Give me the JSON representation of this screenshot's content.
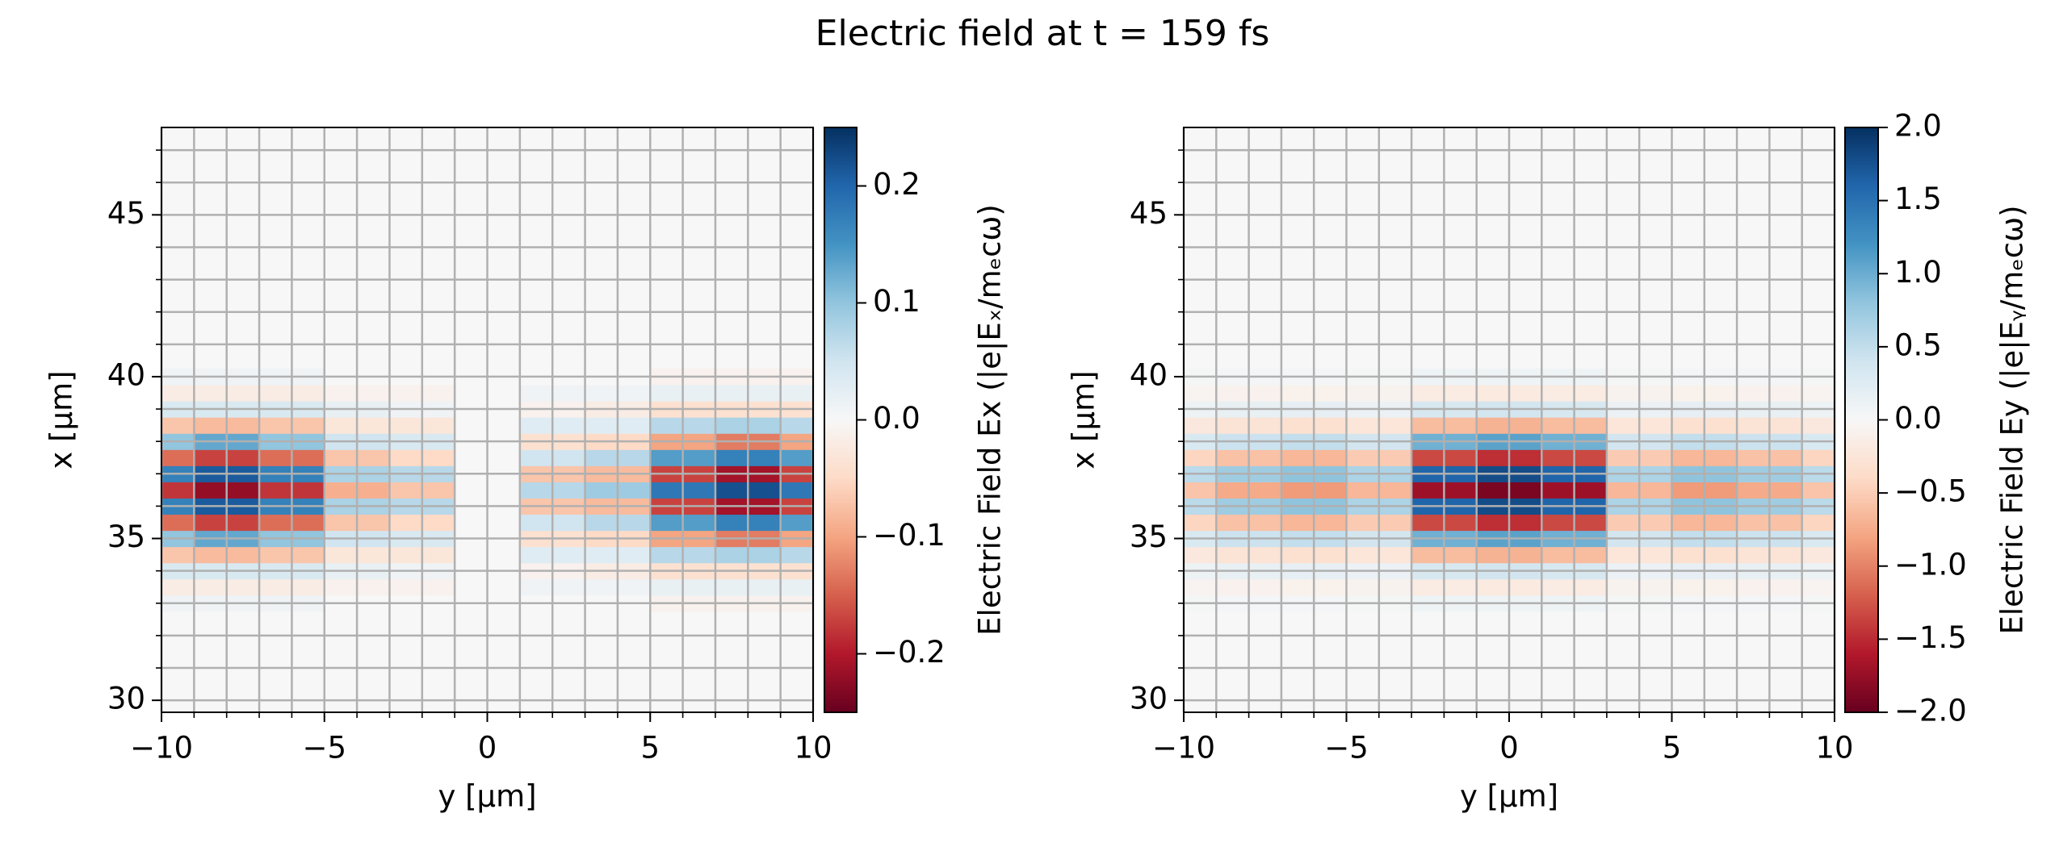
{
  "title": "Electric field at t = 159 fs",
  "chart_data": [
    {
      "type": "heatmap",
      "xlabel": "y [µm]",
      "ylabel": "x [µm]",
      "xlim": [
        -10,
        10
      ],
      "ylim": [
        29.63,
        47.7
      ],
      "xticks": [
        {
          "value": -10,
          "label": "−10"
        },
        {
          "value": -5,
          "label": "−5"
        },
        0,
        5,
        10
      ],
      "yticks": [
        30,
        35,
        40,
        45
      ],
      "xminorticks": [
        -10,
        -9,
        -8,
        -7,
        -6,
        -5,
        -4,
        -3,
        -2,
        -1,
        0,
        1,
        2,
        3,
        4,
        5,
        6,
        7,
        8,
        9,
        10
      ],
      "yminorticks": [
        30,
        31,
        32,
        33,
        34,
        35,
        36,
        37,
        38,
        39,
        40,
        41,
        42,
        43,
        44,
        45,
        46,
        47
      ],
      "grid": true,
      "colormap": [
        "#67001f",
        "#b2182b",
        "#d6604d",
        "#f4a582",
        "#fddbc7",
        "#f7f7f7",
        "#d1e5f0",
        "#92c5de",
        "#4393c3",
        "#2166ac",
        "#053061"
      ],
      "colorbar": {
        "label": "Electric Field Ex (|e|Eₓ/mₑcω)",
        "lim": [
          -0.25,
          0.25
        ],
        "ticks": [
          {
            "value": -0.2,
            "label": "−0.2"
          },
          {
            "value": -0.1,
            "label": "−0.1"
          },
          {
            "value": 0,
            "label": "0.0"
          },
          0.1,
          0.2
        ]
      },
      "x": [
        -10,
        -8,
        -6,
        -4,
        -2,
        0,
        2,
        4,
        6,
        8,
        10
      ],
      "y": [
        33,
        33.5,
        34,
        34.5,
        35,
        35.5,
        36,
        36.5,
        37,
        37.5,
        38,
        38.5,
        39,
        39.5,
        40
      ],
      "values": [
        [
          0.01,
          0.01,
          0.01,
          0,
          0,
          0,
          0,
          0,
          -0.01,
          -0.01,
          -0.01
        ],
        [
          -0.02,
          -0.02,
          -0.02,
          -0.01,
          -0.01,
          0,
          0.01,
          0.01,
          0.02,
          0.02,
          0.02
        ],
        [
          0.04,
          0.04,
          0.04,
          0.02,
          0.01,
          0,
          -0.01,
          -0.02,
          -0.04,
          -0.04,
          -0.04
        ],
        [
          -0.07,
          -0.08,
          -0.07,
          -0.03,
          -0.03,
          0,
          0.03,
          0.03,
          0.07,
          0.08,
          0.07
        ],
        [
          0.1,
          0.13,
          0.1,
          0.05,
          0.04,
          0,
          -0.04,
          -0.05,
          -0.1,
          -0.13,
          -0.1
        ],
        [
          -0.14,
          -0.17,
          -0.14,
          -0.07,
          -0.05,
          0,
          0.05,
          0.07,
          0.14,
          0.17,
          0.14
        ],
        [
          0.17,
          0.21,
          0.17,
          0.08,
          0.07,
          0,
          -0.07,
          -0.08,
          -0.17,
          -0.21,
          -0.17
        ],
        [
          -0.18,
          -0.22,
          -0.18,
          -0.09,
          -0.07,
          0,
          0.07,
          0.09,
          0.18,
          0.22,
          0.18
        ],
        [
          0.17,
          0.21,
          0.17,
          0.08,
          0.07,
          0,
          -0.07,
          -0.08,
          -0.17,
          -0.21,
          -0.17
        ],
        [
          -0.14,
          -0.17,
          -0.14,
          -0.07,
          -0.05,
          0,
          0.05,
          0.07,
          0.14,
          0.17,
          0.14
        ],
        [
          0.1,
          0.13,
          0.1,
          0.05,
          0.04,
          0,
          -0.04,
          -0.05,
          -0.1,
          -0.13,
          -0.1
        ],
        [
          -0.07,
          -0.08,
          -0.07,
          -0.03,
          -0.03,
          0,
          0.03,
          0.03,
          0.07,
          0.08,
          0.07
        ],
        [
          0.04,
          0.04,
          0.04,
          0.02,
          0.01,
          0,
          -0.01,
          -0.02,
          -0.04,
          -0.04,
          -0.04
        ],
        [
          -0.02,
          -0.02,
          -0.02,
          -0.01,
          -0.01,
          0,
          0.01,
          0.01,
          0.02,
          0.02,
          0.02
        ],
        [
          0.01,
          0.01,
          0.01,
          0,
          0,
          0,
          0,
          0,
          -0.01,
          -0.01,
          -0.01
        ]
      ]
    },
    {
      "type": "heatmap",
      "xlabel": "y [µm]",
      "ylabel": "x [µm]",
      "xlim": [
        -10,
        10
      ],
      "ylim": [
        29.63,
        47.7
      ],
      "xticks": [
        {
          "value": -10,
          "label": "−10"
        },
        {
          "value": -5,
          "label": "−5"
        },
        0,
        5,
        10
      ],
      "yticks": [
        30,
        35,
        40,
        45
      ],
      "xminorticks": [
        -10,
        -9,
        -8,
        -7,
        -6,
        -5,
        -4,
        -3,
        -2,
        -1,
        0,
        1,
        2,
        3,
        4,
        5,
        6,
        7,
        8,
        9,
        10
      ],
      "yminorticks": [
        30,
        31,
        32,
        33,
        34,
        35,
        36,
        37,
        38,
        39,
        40,
        41,
        42,
        43,
        44,
        45,
        46,
        47
      ],
      "grid": true,
      "colormap": [
        "#67001f",
        "#b2182b",
        "#d6604d",
        "#f4a582",
        "#fddbc7",
        "#f7f7f7",
        "#d1e5f0",
        "#92c5de",
        "#4393c3",
        "#2166ac",
        "#053061"
      ],
      "colorbar": {
        "label": "Electric Field Ey (|e|Eᵧ/mₑcω)",
        "lim": [
          -2,
          2
        ],
        "ticks": [
          {
            "value": -2,
            "label": "−2.0"
          },
          {
            "value": -1.5,
            "label": "−1.5"
          },
          {
            "value": -1,
            "label": "−1.0"
          },
          {
            "value": -0.5,
            "label": "−0.5"
          },
          {
            "value": 0,
            "label": "0.0"
          },
          0.5,
          {
            "value": 1,
            "label": "1.0"
          },
          1.5,
          {
            "value": 2,
            "label": "2.0"
          }
        ]
      },
      "x": [
        -10,
        -8,
        -6,
        -4,
        -2,
        0,
        2,
        4,
        6,
        8,
        10
      ],
      "y": [
        33,
        33.5,
        34,
        34.5,
        35,
        35.5,
        36,
        36.5,
        37,
        37.5,
        38,
        38.5,
        39,
        39.5,
        40
      ],
      "values": [
        [
          0.03,
          0.04,
          0.04,
          0.03,
          0.09,
          0.1,
          0.09,
          0.03,
          0.04,
          0.04,
          0.03
        ],
        [
          -0.06,
          -0.08,
          -0.09,
          -0.07,
          -0.17,
          -0.19,
          -0.17,
          -0.07,
          -0.09,
          -0.08,
          -0.06
        ],
        [
          0.11,
          0.15,
          0.17,
          0.13,
          0.34,
          0.38,
          0.34,
          0.13,
          0.17,
          0.15,
          0.11
        ],
        [
          -0.21,
          -0.28,
          -0.32,
          -0.25,
          -0.63,
          -0.7,
          -0.63,
          -0.25,
          -0.32,
          -0.28,
          -0.21
        ],
        [
          0.32,
          0.43,
          0.49,
          0.38,
          0.97,
          1.08,
          0.97,
          0.38,
          0.49,
          0.43,
          0.32
        ],
        [
          -0.44,
          -0.59,
          -0.67,
          -0.52,
          -1.33,
          -1.48,
          -1.33,
          -0.52,
          -0.67,
          -0.59,
          -0.44
        ],
        [
          0.54,
          0.71,
          0.81,
          0.63,
          1.61,
          1.79,
          1.61,
          0.63,
          0.81,
          0.71,
          0.54
        ],
        [
          -0.57,
          -0.76,
          -0.86,
          -0.67,
          -1.71,
          -1.9,
          -1.71,
          -0.67,
          -0.86,
          -0.76,
          -0.57
        ],
        [
          0.54,
          0.71,
          0.81,
          0.63,
          1.61,
          1.79,
          1.61,
          0.63,
          0.81,
          0.71,
          0.54
        ],
        [
          -0.44,
          -0.59,
          -0.67,
          -0.52,
          -1.33,
          -1.48,
          -1.33,
          -0.52,
          -0.67,
          -0.59,
          -0.44
        ],
        [
          0.32,
          0.43,
          0.49,
          0.38,
          0.97,
          1.08,
          0.97,
          0.38,
          0.49,
          0.43,
          0.32
        ],
        [
          -0.21,
          -0.28,
          -0.32,
          -0.25,
          -0.63,
          -0.7,
          -0.63,
          -0.25,
          -0.32,
          -0.28,
          -0.21
        ],
        [
          0.11,
          0.15,
          0.17,
          0.13,
          0.34,
          0.38,
          0.34,
          0.13,
          0.17,
          0.15,
          0.11
        ],
        [
          -0.06,
          -0.08,
          -0.09,
          -0.07,
          -0.17,
          -0.19,
          -0.17,
          -0.07,
          -0.09,
          -0.08,
          -0.06
        ],
        [
          0.03,
          0.04,
          0.04,
          0.03,
          0.09,
          0.1,
          0.09,
          0.03,
          0.04,
          0.04,
          0.03
        ]
      ]
    }
  ]
}
